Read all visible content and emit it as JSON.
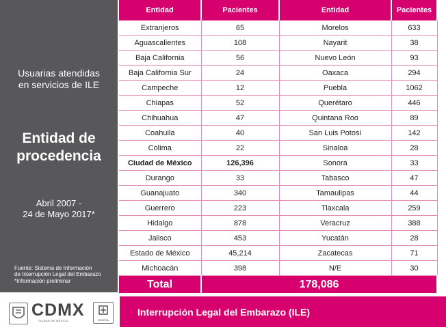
{
  "sidebar": {
    "subtitle": "Usuarias atendidas\nen servicios de ILE",
    "title": "Entidad de\nprocedencia",
    "period": "Abril 2007 -\n24 de Mayo 2017*",
    "source": "Fuente: Sistema de Información\nde Interrupción Legal del Embarazo",
    "note": "*Información preliminar"
  },
  "table": {
    "headers": [
      "Entidad",
      "Pacientes",
      "Entidad",
      "Pacientes"
    ],
    "rows": [
      [
        "Extranjeros",
        "65",
        "Morelos",
        "633"
      ],
      [
        "Aguascalientes",
        "108",
        "Nayarit",
        "38"
      ],
      [
        "Baja California",
        "56",
        "Nuevo León",
        "93"
      ],
      [
        "Baja California Sur",
        "24",
        "Oaxaca",
        "294"
      ],
      [
        "Campeche",
        "12",
        "Puebla",
        "1062"
      ],
      [
        "Chiapas",
        "52",
        "Querétaro",
        "446"
      ],
      [
        "Chihuahua",
        "47",
        "Quintana Roo",
        "89"
      ],
      [
        "Coahuila",
        "40",
        "San Luis Potosí",
        "142"
      ],
      [
        "Colima",
        "22",
        "Sinaloa",
        "28"
      ],
      [
        "Ciudad de México",
        "126,396",
        "Sonora",
        "33"
      ],
      [
        "Durango",
        "33",
        "Tabasco",
        "47"
      ],
      [
        "Guanajuato",
        "340",
        "Tamaulipas",
        "44"
      ],
      [
        "Guerrero",
        "223",
        "Tlaxcala",
        "259"
      ],
      [
        "Hidalgo",
        "878",
        "Veracruz",
        "388"
      ],
      [
        "Jalisco",
        "453",
        "Yucatán",
        "28"
      ],
      [
        "Estado de México",
        "45,214",
        "Zacatecas",
        "71"
      ],
      [
        "Michoacán",
        "398",
        "N/E",
        "30"
      ]
    ],
    "total_label": "Total",
    "total_value": "178,086"
  },
  "footer": {
    "logo_text": "CDMX",
    "logo_subtext": "CIUDAD DE MÉXICO",
    "sedesa_label": "SEDESA",
    "title": "Interrupción Legal del Embarazo (ILE)"
  },
  "colors": {
    "accent": "#d6006e",
    "sidebar": "#58585a"
  }
}
